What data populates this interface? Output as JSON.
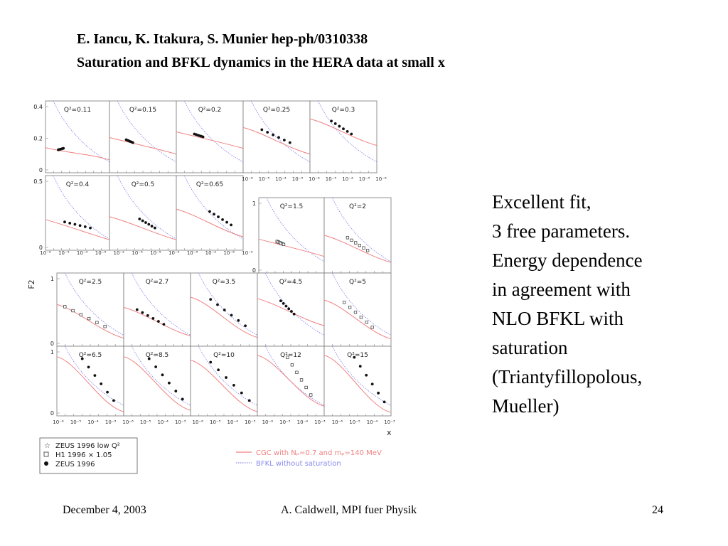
{
  "slide": {
    "title_line1": "E. Iancu, K. Itakura, S. Munier hep-ph/0310338",
    "title_line2": "Saturation and BFKL dynamics in the HERA data at small x",
    "commentary": [
      "Excellent fit,",
      "3 free parameters.",
      "Energy dependence",
      "in agreement with",
      "NLO BFKL with",
      "saturation",
      "(Triantyfillopolous,",
      "Mueller)"
    ],
    "footer": {
      "date": "December 4, 2003",
      "center": "A. Caldwell, MPI fuer Physik",
      "page": "24"
    }
  },
  "chart_data": {
    "type": "scatter",
    "ylabel": "F2",
    "xlabel": "x",
    "x_log": true,
    "panels": [
      {
        "label": "Q²=0.11",
        "ytick_labels": [
          "0.4",
          "0.2",
          "0"
        ]
      },
      {
        "label": "Q²=0.15"
      },
      {
        "label": "Q²=0.2"
      },
      {
        "label": "Q²=0.25"
      },
      {
        "label": "Q²=0.3"
      },
      {
        "label": "Q²=0.4",
        "ytick_labels": [
          "0.5",
          "0"
        ]
      },
      {
        "label": "Q²=0.5"
      },
      {
        "label": "Q²=0.65"
      },
      {
        "label": "Q²=1.5",
        "ytick_labels": [
          "1",
          "0"
        ]
      },
      {
        "label": "Q²=2"
      },
      {
        "label": "Q²=2.5",
        "ytick_labels": [
          "1",
          "0"
        ]
      },
      {
        "label": "Q²=2.7"
      },
      {
        "label": "Q²=3.5"
      },
      {
        "label": "Q²=4.5"
      },
      {
        "label": "Q²=5"
      },
      {
        "label": "Q²=6.5",
        "ytick_labels": [
          "1",
          "0"
        ]
      },
      {
        "label": "Q²=8.5"
      },
      {
        "label": "Q²=10"
      },
      {
        "label": "Q²=12"
      },
      {
        "label": "Q²=15"
      }
    ],
    "xtick_labels": [
      "10⁻⁶",
      "10⁻⁵",
      "10⁻⁴",
      "10⁻³"
    ],
    "xtick_labels_row2": [
      "10⁻⁶",
      "10⁻⁵",
      "10⁻⁴",
      "10⁻³",
      "10⁻²"
    ],
    "legend_markers": [
      {
        "symbol": "star",
        "label": "ZEUS 1996 low Q²"
      },
      {
        "symbol": "open-square",
        "label": "H1 1996 × 1.05"
      },
      {
        "symbol": "filled-circle",
        "label": "ZEUS 1996"
      }
    ],
    "legend_lines": [
      {
        "label": "CGC with Nₚ=0.7 and mₚ=140 MeV",
        "color": "#f08080",
        "style": "solid"
      },
      {
        "label": "BFKL without saturation",
        "color": "#8a8aee",
        "style": "dotted"
      }
    ],
    "colors": {
      "cgc": "#f08080",
      "bfkl": "#8a8aee"
    }
  }
}
